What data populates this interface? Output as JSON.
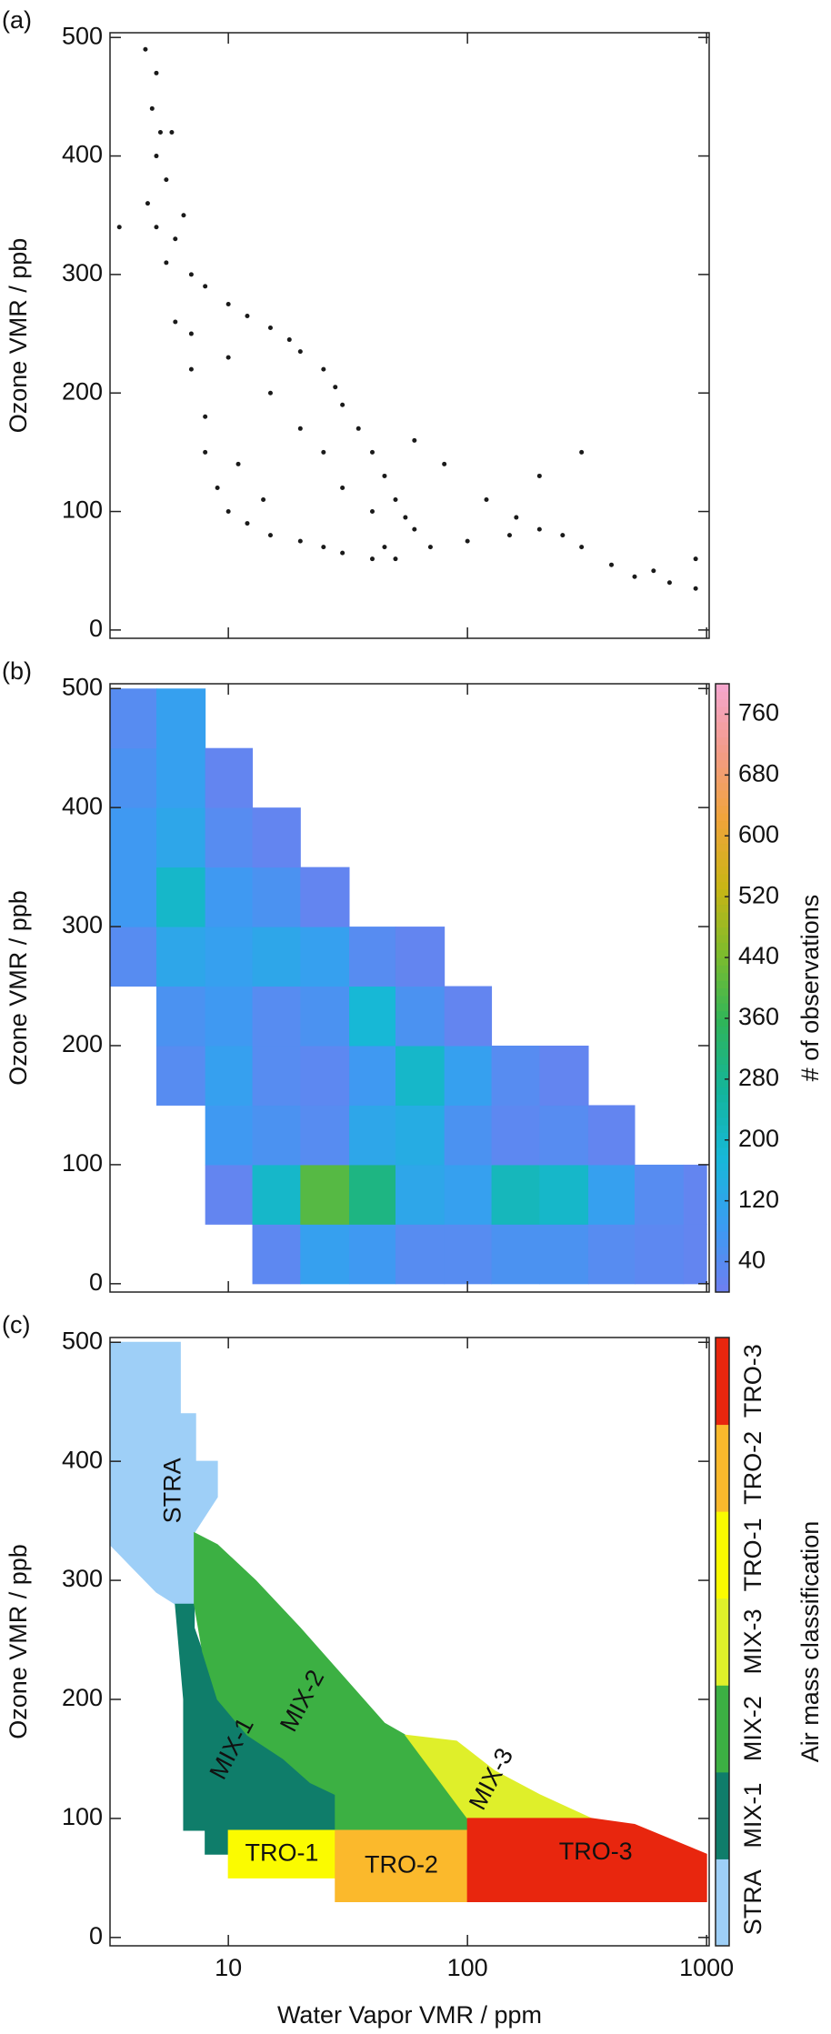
{
  "chart_data": [
    {
      "type": "scatter",
      "label": "(a)",
      "y_label": "Ozone VMR / ppb",
      "color": "#1a1a1a",
      "xscale": "log",
      "xlim": [
        3.2,
        1025
      ],
      "ylim": [
        -7,
        504
      ],
      "xticks": [
        10,
        100,
        1000
      ],
      "show_xtick_labels": false,
      "yticks": [
        0,
        100,
        200,
        300,
        400,
        500
      ],
      "x": [
        4.5,
        5,
        4.8,
        5.2,
        5,
        5.5,
        4.6,
        5,
        6,
        5.5,
        7,
        8,
        10,
        12,
        15,
        18,
        20,
        25,
        28,
        30,
        35,
        40,
        45,
        50,
        55,
        60,
        7,
        8,
        8,
        9,
        10,
        12,
        15,
        20,
        25,
        30,
        40,
        50,
        70,
        100,
        150,
        200,
        250,
        300,
        400,
        500,
        700,
        900,
        120,
        200,
        300,
        15,
        20,
        25,
        10,
        6,
        7,
        60,
        80,
        30,
        40,
        3.5,
        900,
        5.8,
        6.5,
        11,
        14,
        45,
        160,
        600
      ],
      "y": [
        490,
        470,
        440,
        420,
        400,
        380,
        360,
        340,
        330,
        310,
        300,
        290,
        275,
        265,
        255,
        245,
        235,
        220,
        205,
        190,
        170,
        150,
        130,
        110,
        95,
        85,
        220,
        180,
        150,
        120,
        100,
        90,
        80,
        75,
        70,
        65,
        60,
        60,
        70,
        75,
        80,
        85,
        80,
        70,
        55,
        45,
        40,
        35,
        110,
        130,
        150,
        200,
        170,
        150,
        230,
        260,
        250,
        160,
        140,
        120,
        100,
        340,
        60,
        420,
        350,
        140,
        110,
        70,
        95,
        50
      ]
    },
    {
      "type": "heatmap",
      "label": "(b)",
      "y_label": "Ozone VMR / ppb",
      "colorbar_label": "# of observations",
      "xscale": "log",
      "xlim": [
        3.2,
        1025
      ],
      "ylim": [
        -7,
        504
      ],
      "xticks": [
        10,
        100,
        1000
      ],
      "show_xtick_labels": false,
      "yticks": [
        0,
        100,
        200,
        300,
        400,
        500
      ],
      "xbins": [
        3.2,
        5,
        8,
        12.6,
        20,
        32,
        50,
        80,
        126,
        200,
        320,
        500,
        800,
        1000
      ],
      "ybins": [
        0,
        50,
        100,
        150,
        200,
        250,
        300,
        350,
        400,
        450,
        500
      ],
      "values": [
        [
          null,
          null,
          null,
          30,
          100,
          80,
          40,
          40,
          60,
          60,
          40,
          30,
          20
        ],
        [
          null,
          null,
          20,
          200,
          400,
          300,
          120,
          100,
          220,
          200,
          100,
          40,
          20
        ],
        [
          null,
          null,
          80,
          60,
          40,
          120,
          140,
          60,
          30,
          40,
          20,
          null,
          null
        ],
        [
          null,
          40,
          100,
          40,
          30,
          80,
          200,
          100,
          40,
          20,
          null,
          null,
          null
        ],
        [
          null,
          60,
          80,
          40,
          60,
          180,
          60,
          20,
          null,
          null,
          null,
          null,
          null
        ],
        [
          40,
          120,
          100,
          120,
          100,
          40,
          20,
          null,
          null,
          null,
          null,
          null,
          null
        ],
        [
          80,
          200,
          80,
          60,
          20,
          null,
          null,
          null,
          null,
          null,
          null,
          null,
          null
        ],
        [
          80,
          120,
          40,
          20,
          null,
          null,
          null,
          null,
          null,
          null,
          null,
          null,
          null
        ],
        [
          60,
          100,
          20,
          null,
          null,
          null,
          null,
          null,
          null,
          null,
          null,
          null,
          null
        ],
        [
          40,
          100,
          null,
          null,
          null,
          null,
          null,
          null,
          null,
          null,
          null,
          null,
          null
        ]
      ],
      "zlim": [
        0,
        800
      ],
      "zticks": [
        40,
        120,
        200,
        280,
        360,
        440,
        520,
        600,
        680,
        760
      ],
      "colormap": [
        "#6f7ef0",
        "#3a9cf2",
        "#17b8d8",
        "#14b59a",
        "#2fb55a",
        "#7dbc2d",
        "#c9b515",
        "#f0a43a",
        "#f39b88",
        "#f5a7d0"
      ]
    },
    {
      "type": "classification",
      "label": "(c)",
      "y_label": "Ozone VMR / ppb",
      "x_label": "Water Vapor VMR / ppm",
      "colorbar_label": "Air mass classification",
      "xscale": "log",
      "xlim": [
        3.2,
        1025
      ],
      "ylim": [
        -7,
        504
      ],
      "xticks": [
        10,
        100,
        1000
      ],
      "show_xtick_labels": true,
      "yticks": [
        0,
        100,
        200,
        300,
        400,
        500
      ],
      "regions": [
        {
          "name": "STRA",
          "color": "#9ecff7",
          "x": [
            3.2,
            6.3,
            6.3,
            7.3,
            7.3,
            9,
            9,
            7.2,
            7.2,
            6,
            5,
            4,
            3.2
          ],
          "y": [
            500,
            500,
            440,
            440,
            400,
            400,
            370,
            340,
            280,
            280,
            290,
            310,
            330
          ]
        },
        {
          "name": "MIX-1",
          "color": "#0f7d6a",
          "x": [
            6,
            7.2,
            7.2,
            7.8,
            9,
            12,
            17,
            22,
            28,
            28,
            10,
            10,
            8,
            8,
            6.5,
            6.5
          ],
          "y": [
            280,
            280,
            260,
            240,
            200,
            170,
            150,
            130,
            120,
            90,
            90,
            70,
            70,
            90,
            90,
            200
          ]
        },
        {
          "name": "MIX-2",
          "color": "#3cb043",
          "x": [
            7.2,
            9,
            13,
            20,
            30,
            45,
            55,
            100,
            100,
            28,
            28,
            22,
            17,
            12,
            9,
            7.8,
            7.2
          ],
          "y": [
            340,
            330,
            300,
            260,
            220,
            180,
            170,
            100,
            90,
            90,
            120,
            130,
            150,
            170,
            200,
            240,
            280
          ]
        },
        {
          "name": "MIX-3",
          "color": "#dfef2a",
          "x": [
            55,
            90,
            130,
            200,
            330,
            100
          ],
          "y": [
            170,
            165,
            140,
            120,
            100,
            100
          ]
        },
        {
          "name": "TRO-1",
          "color": "#fbfb00",
          "x": [
            10,
            28,
            28,
            10
          ],
          "y": [
            90,
            90,
            50,
            50
          ]
        },
        {
          "name": "TRO-2",
          "color": "#fbb92c",
          "x": [
            28,
            100,
            100,
            28
          ],
          "y": [
            90,
            90,
            30,
            30
          ]
        },
        {
          "name": "TRO-3",
          "color": "#e8260e",
          "x": [
            100,
            330,
            500,
            1000,
            1000,
            100
          ],
          "y": [
            100,
            100,
            95,
            70,
            30,
            30
          ]
        }
      ]
    }
  ]
}
